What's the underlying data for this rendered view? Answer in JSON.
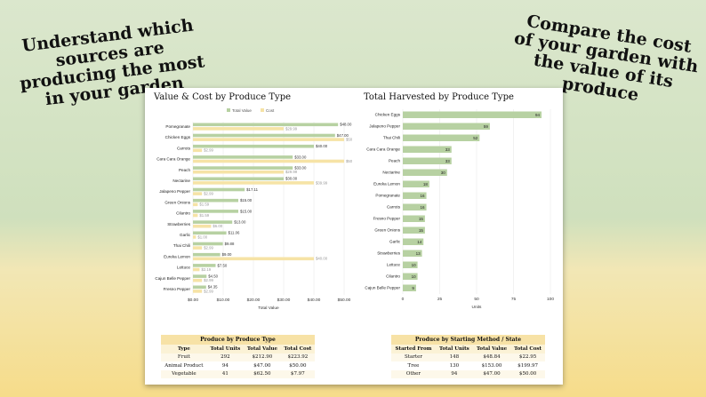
{
  "headline_left": "Understand which sources are producing the most in your garden",
  "headline_right": "Compare the cost of your garden with the value of its produce",
  "chart_data": [
    {
      "type": "bar",
      "title": "Value & Cost by Produce Type",
      "xlabel": "Total Value",
      "ylabel": "",
      "xlim": [
        0,
        50
      ],
      "xticks": [
        "$0.00",
        "$10.00",
        "$20.00",
        "$30.00",
        "$40.00",
        "$50.00"
      ],
      "categories": [
        "Pomegranate",
        "Chicken Eggs",
        "Carrots",
        "Cara Cara Orange",
        "Peach",
        "Nectarine",
        "Jalapeno Pepper",
        "Green Onions",
        "Cilantro",
        "Strawberries",
        "Garlic",
        "Thai Chili",
        "Eureka Lemon",
        "Lettuce",
        "Cajun Belle Pepper",
        "Fresno Pepper"
      ],
      "series": [
        {
          "name": "Total Value",
          "color": "#b7d1a2",
          "values": [
            48.0,
            47.0,
            40.0,
            33.0,
            33.0,
            30.0,
            17.11,
            15.0,
            15.0,
            13.0,
            11.06,
            9.88,
            9.0,
            7.5,
            4.5,
            4.35
          ],
          "labels": [
            "$48.00",
            "$47.00",
            "$40.00",
            "$33.00",
            "$33.00",
            "$30.00",
            "$17.11",
            "$15.00",
            "$15.00",
            "$13.00",
            "$11.06",
            "$9.88",
            "$9.00",
            "$7.50",
            "$4.50",
            "$4.35"
          ]
        },
        {
          "name": "Cost",
          "color": "#f6e3a6",
          "values": [
            29.99,
            50.0,
            2.99,
            50.0,
            29.99,
            39.99,
            2.99,
            1.59,
            1.59,
            6.0,
            1.0,
            2.99,
            40.0,
            2.19,
            2.99,
            2.99
          ],
          "labels": [
            "$29.99",
            "$50",
            "$2.99",
            "$50",
            "$29.99",
            "$39.99",
            "$2.99",
            "$1.59",
            "$1.59",
            "$6.00",
            "$1.00",
            "$2.99",
            "$40.00",
            "$2.19",
            "$2.99",
            "$2.99"
          ]
        }
      ],
      "legend": "top"
    },
    {
      "type": "bar",
      "title": "Total Harvested by Produce Type",
      "xlabel": "Units",
      "ylabel": "",
      "xlim": [
        0,
        100
      ],
      "xticks": [
        "0",
        "25",
        "50",
        "75",
        "100"
      ],
      "categories": [
        "Chicken Eggs",
        "Jalapeno Pepper",
        "Thai Chili",
        "Cara Cara Orange",
        "Peach",
        "Nectarine",
        "Eureka Lemon",
        "Pomegranate",
        "Carrots",
        "Fresno Pepper",
        "Green Onions",
        "Garlic",
        "Strawberries",
        "Lettuce",
        "Cilantro",
        "Cajun Belle Pepper"
      ],
      "series": [
        {
          "color": "#b7d1a2",
          "values": [
            94,
            59,
            52,
            33,
            33,
            30,
            18,
            16,
            16,
            15,
            15,
            14,
            13,
            10,
            10,
            9
          ]
        }
      ]
    }
  ],
  "table_produce": {
    "caption": "Produce by Produce Type",
    "headers": [
      "Type",
      "Total Units",
      "Total Value",
      "Total Cost"
    ],
    "rows": [
      [
        "Fruit",
        "292",
        "$212.90",
        "$223.92"
      ],
      [
        "Animal Product",
        "94",
        "$47.00",
        "$50.00"
      ],
      [
        "Vegetable",
        "41",
        "$62.50",
        "$7.97"
      ]
    ]
  },
  "table_method": {
    "caption": "Produce by Starting Method / State",
    "headers": [
      "Started From",
      "Total Units",
      "Total Value",
      "Total Cost"
    ],
    "rows": [
      [
        "Starter",
        "148",
        "$48.84",
        "$22.95"
      ],
      [
        "Tree",
        "130",
        "$153.00",
        "$199.97"
      ],
      [
        "Other",
        "94",
        "$47.00",
        "$50.00"
      ]
    ]
  }
}
